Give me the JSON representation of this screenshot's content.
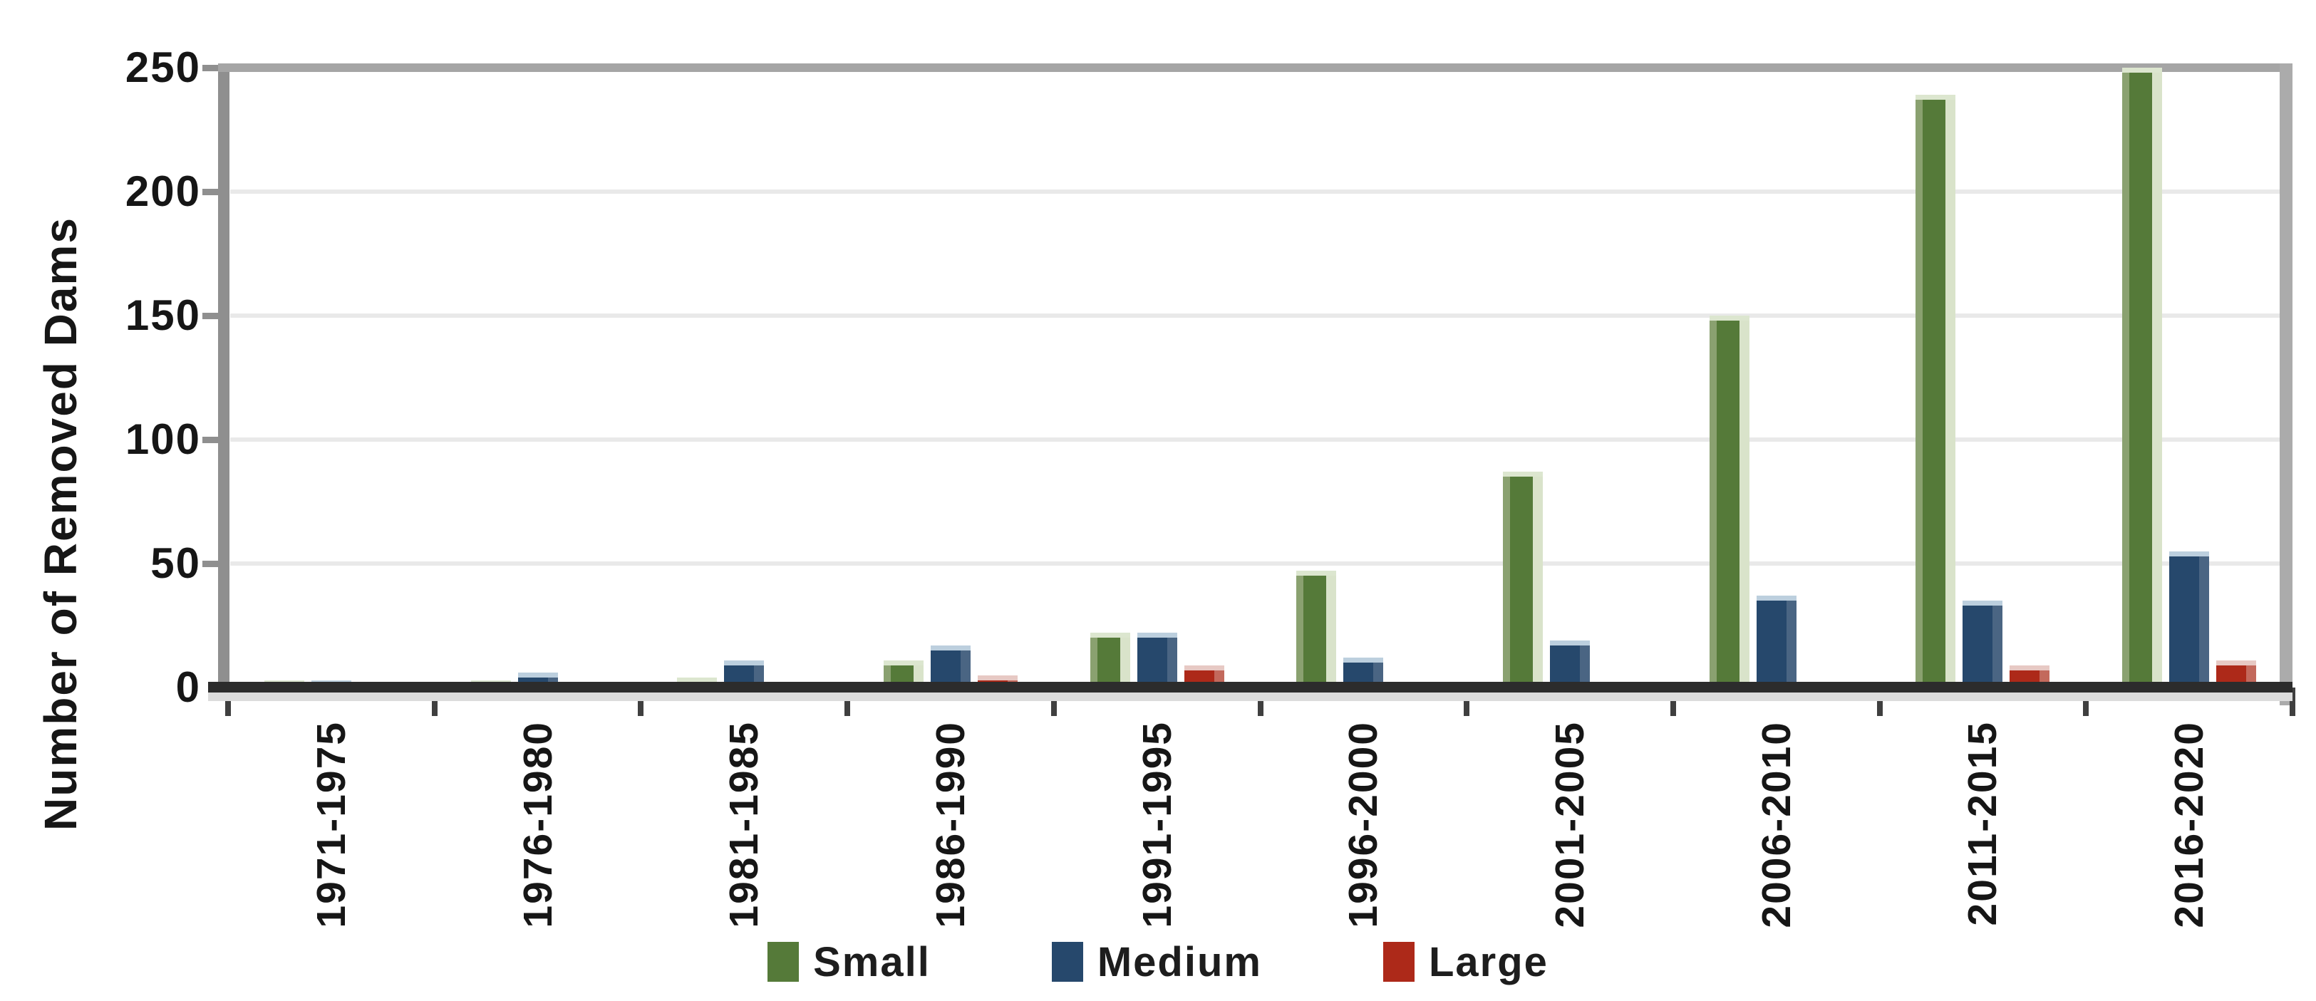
{
  "chart_data": {
    "type": "bar",
    "ylabel": "Number of Removed Dams",
    "categories": [
      "1971-1975",
      "1976-1980",
      "1981-1985",
      "1986-1990",
      "1991-1995",
      "1996-2000",
      "2001-2005",
      "2006-2010",
      "2011-2015",
      "2016-2020"
    ],
    "series": [
      {
        "name": "Small",
        "color": "#557a39",
        "values": [
          3,
          3,
          4,
          11,
          22,
          47,
          87,
          150,
          239,
          250
        ]
      },
      {
        "name": "Medium",
        "color": "#26486c",
        "values": [
          3,
          6,
          11,
          17,
          22,
          12,
          19,
          37,
          35,
          55
        ]
      },
      {
        "name": "Large",
        "color": "#ad2919",
        "values": [
          1,
          0,
          0,
          5,
          9,
          1,
          1,
          0,
          9,
          11
        ]
      }
    ],
    "ylim": [
      0,
      250
    ],
    "yticks": [
      0,
      50,
      100,
      150,
      200,
      250
    ],
    "grid": true,
    "legend_position": "bottom",
    "axis_color": "#8f8f8f",
    "baseline_color": "#2c2c2c",
    "gridline_color": "#e9e9e9"
  }
}
